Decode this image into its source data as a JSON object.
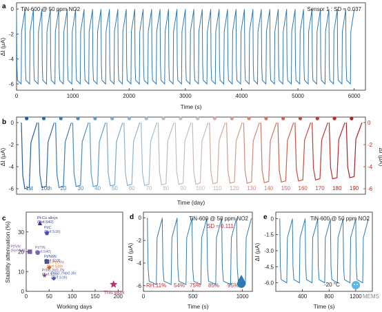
{
  "panel_letters": [
    "a",
    "b",
    "c",
    "d",
    "e"
  ],
  "watermark": "MEMS",
  "chart_data": [
    {
      "panel": "a",
      "type": "line",
      "annotation_left": "TiN-600 @ 50 ppm NO2",
      "annotation_right": "Sensor 1 : SD ≈ 0.037",
      "xlabel": "Time (s)",
      "ylabel": "ΔI (μA)",
      "xlim": [
        0,
        6200
      ],
      "ylim": [
        -6.5,
        0.5
      ],
      "xticks": [
        0,
        1000,
        2000,
        3000,
        4000,
        5000,
        6000
      ],
      "yticks": [
        0,
        -2,
        -4,
        -6
      ],
      "cycles": 40,
      "cycle_period_s": 150,
      "response_uA": -6.0,
      "color": "#2e78b4",
      "grid": false
    },
    {
      "panel": "b",
      "type": "line",
      "xlabel": "Time (day)",
      "ylabel": "ΔI (μA)",
      "ylim": [
        -6.5,
        0.5
      ],
      "yticks_left": [
        0,
        -2,
        -4,
        -6
      ],
      "yticks_right": [
        0,
        -2,
        -4,
        -6
      ],
      "categories": [
        "1st",
        "10th",
        "20",
        "30",
        "40",
        "50",
        "60",
        "70",
        "80",
        "90",
        "100",
        "110",
        "120",
        "130",
        "140",
        "150",
        "160",
        "170",
        "180",
        "190"
      ],
      "colors": [
        "#1f5b9e",
        "#2a6aa9",
        "#3a7db6",
        "#4b8cbf",
        "#5f9bc6",
        "#76a9cb",
        "#8db3cd",
        "#a2bbcb",
        "#b5bfc7",
        "#c3bfbf",
        "#cdb9b3",
        "#d2aca3",
        "#d49b90",
        "#d5897b",
        "#d27566",
        "#cd6152",
        "#c84d41",
        "#c13a33",
        "#b82a28",
        "#ad1e20"
      ],
      "responses_uA": [
        -6.0,
        -5.9,
        -5.9,
        -5.8,
        -5.8,
        -5.75,
        -5.7,
        -5.7,
        -5.65,
        -5.6,
        -5.6,
        -5.55,
        -5.5,
        -5.5,
        -5.45,
        -5.4,
        -5.3,
        -5.2,
        -5.1,
        -5.0
      ],
      "grid": false
    },
    {
      "panel": "c",
      "type": "scatter",
      "xlabel": "Working days",
      "ylabel": "Stability attenuation (%)",
      "xlim": [
        0,
        210
      ],
      "ylim": [
        0,
        40
      ],
      "xticks": [
        0,
        50,
        100,
        150,
        200
      ],
      "yticks": [
        0,
        10,
        20,
        30
      ],
      "points": [
        {
          "label": "Pt-Cu alloys",
          "ref": "(Ref.S42)",
          "x": 30,
          "y": 34.5,
          "marker": "triangle",
          "color": "#3b2f8f"
        },
        {
          "label": "Pt/C",
          "ref": "(Ref.S16)",
          "x": 45,
          "y": 29.5,
          "marker": "pentagon",
          "color": "#4b4fb0"
        },
        {
          "label": "Pt/VN",
          "ref": "(Ref.S41)",
          "x": 8,
          "y": 20,
          "marker": "square",
          "color": "#7b5aa6"
        },
        {
          "label": "Pt/TiN",
          "ref": "(Ref.S40)",
          "x": 25,
          "y": 19.5,
          "marker": "circle",
          "color": "#6a6ab8"
        },
        {
          "label": "Pt/NbN",
          "ref": "(Ref.S13)",
          "x": 45,
          "y": 15,
          "marker": "square",
          "color": "#3a4a9a"
        },
        {
          "label": "Cu-Pt/CrN",
          "ref": "(Ref.S39)",
          "x": 50,
          "y": 12,
          "marker": "diamond",
          "color": "#d06a20"
        },
        {
          "label": "PtTi0.3V0.7N",
          "ref": "(Ref.S15)",
          "x": 40,
          "y": 8,
          "marker": "star",
          "color": "#7a4c9c"
        },
        {
          "label": "PtTi0.7Nb0.3N",
          "ref": "(Ref.S16)",
          "x": 60,
          "y": 6.5,
          "marker": "diamond",
          "color": "#4a5aa8"
        },
        {
          "label": "This work",
          "ref": "",
          "x": 190,
          "y": 3.5,
          "marker": "star",
          "color": "#c0306e"
        }
      ]
    },
    {
      "panel": "d",
      "type": "line",
      "annotation": "TiN-600 @ 50 ppm NO2",
      "annotation_sd": "SD ≈ 0.111",
      "xlabel": "Time (s)",
      "ylabel": "ΔI (μA)",
      "xlim": [
        0,
        1100
      ],
      "ylim": [
        -6.5,
        0.5
      ],
      "xticks": [
        0,
        500,
        1000
      ],
      "yticks": [
        0,
        -2,
        -4,
        -6
      ],
      "humidity_labels": [
        "RH:11%",
        "54%",
        "75%",
        "85%",
        "95%"
      ],
      "cycles": 7,
      "response_uA": -5.9,
      "color": "#2e78b4"
    },
    {
      "panel": "e",
      "type": "line",
      "annotation": "TiN-600 @ 50 ppm NO2",
      "annotation_temp": "-20 °C",
      "xlabel": "Time (s)",
      "ylabel": "ΔI (μA)",
      "xlim": [
        0,
        1450
      ],
      "ylim": [
        -6.8,
        0.6
      ],
      "xticks": [
        400,
        800,
        1200
      ],
      "yticks": [
        0,
        -1.5,
        -3.0,
        -4.5,
        -6.0
      ],
      "ytick_labels": [
        "0",
        "-1.5",
        "-3.0",
        "-4.5",
        "-6.0"
      ],
      "cycles": 7,
      "response_uA": -6.0,
      "color": "#2e78b4"
    }
  ]
}
